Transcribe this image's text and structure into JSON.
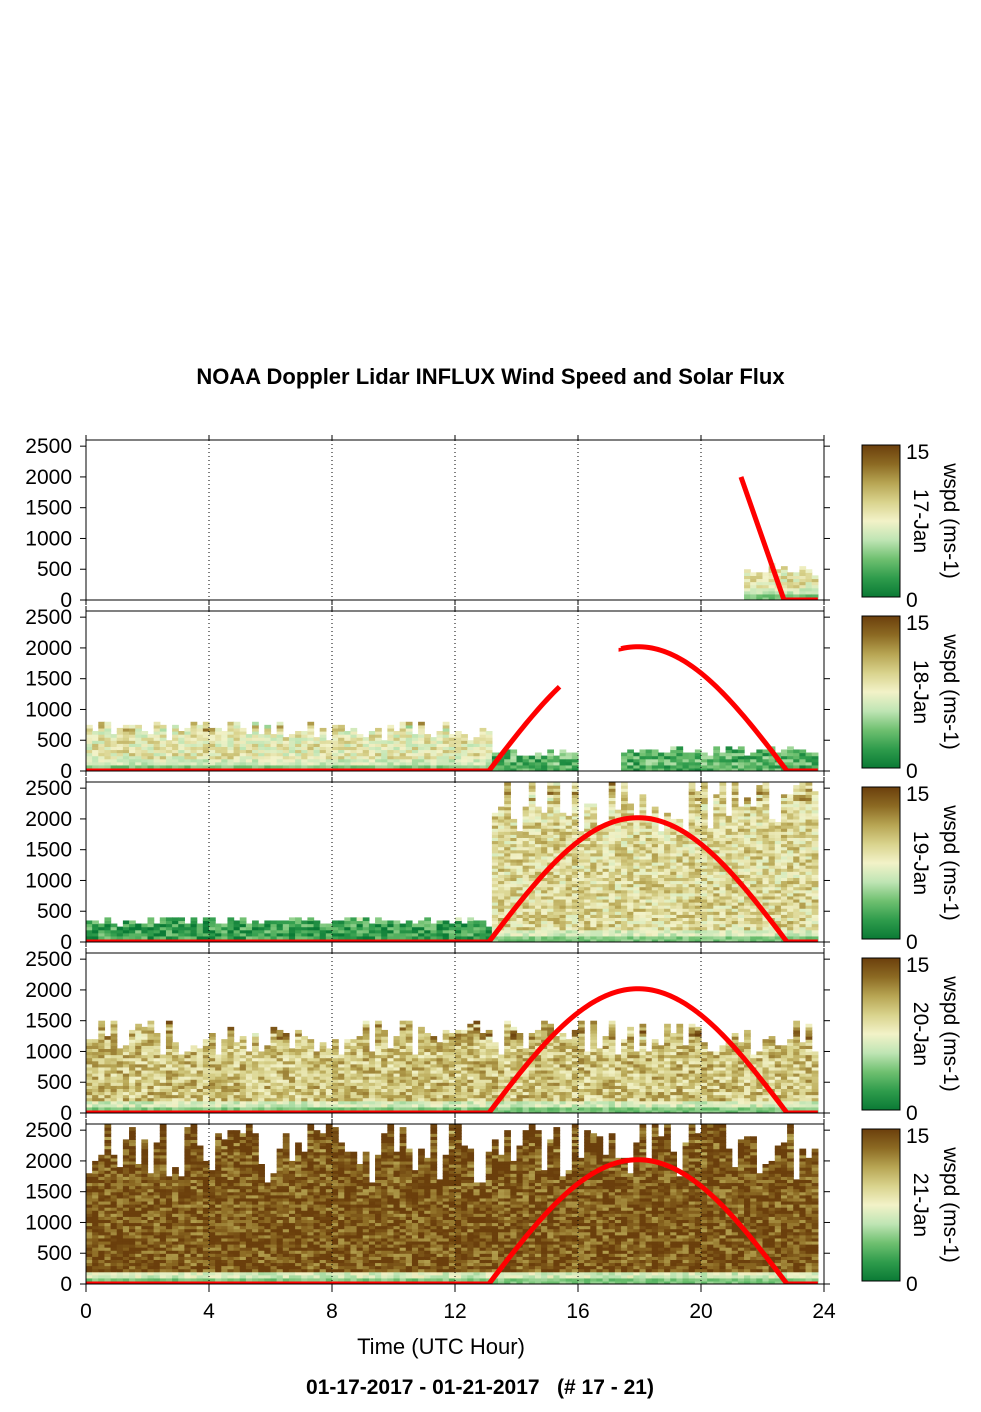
{
  "title": "NOAA Doppler Lidar INFLUX Wind Speed and Solar Flux",
  "footer": "01-17-2017 - 01-21-2017   (# 17 - 21)",
  "colors": {
    "solar_line": "#ff0000",
    "colormap": [
      "#0a7a35",
      "#2f9c4c",
      "#6fc070",
      "#bfe5b4",
      "#f2f2c8",
      "#d9d38d",
      "#b7a553",
      "#8c6a23",
      "#6b3f0c"
    ]
  },
  "chart_data": {
    "type": "heatmap",
    "xlabel": "Time (UTC Hour)",
    "xlim": [
      0,
      24
    ],
    "x_ticks": [
      "0",
      "4",
      "8",
      "12",
      "16",
      "20",
      "24"
    ],
    "ylim": [
      0,
      2600
    ],
    "y_ticks": [
      "0",
      "500",
      "1000",
      "1500",
      "2000",
      "2500"
    ],
    "colorbar": {
      "label": "wspd (ms-1)",
      "min": "0",
      "max": "15"
    },
    "grid": "dotted vertical at x ticks",
    "panels": [
      {
        "date_label": "17-Jan",
        "coverage": [
          {
            "x_start": 21.4,
            "x_end": 23.8,
            "y_max": 500,
            "dominant_wspd": 8
          }
        ],
        "solar_curve": [
          [
            21.3,
            2000
          ],
          [
            22.7,
            0
          ],
          [
            23.8,
            0
          ]
        ]
      },
      {
        "date_label": "18-Jan",
        "coverage": [
          {
            "x_start": 0.0,
            "x_end": 13.2,
            "y_max": 700,
            "dominant_wspd": 8
          },
          {
            "x_start": 13.2,
            "x_end": 16.0,
            "y_max": 300,
            "dominant_wspd": 3
          },
          {
            "x_start": 17.4,
            "x_end": 23.8,
            "y_max": 350,
            "dominant_wspd": 3
          }
        ],
        "solar_curve": [
          [
            0,
            0
          ],
          [
            13.1,
            0
          ],
          [
            15.4,
            1400
          ],
          [
            17.4,
            2000
          ],
          [
            18.0,
            2020
          ],
          [
            22.8,
            0
          ],
          [
            23.8,
            0
          ]
        ]
      },
      {
        "date_label": "19-Jan",
        "coverage": [
          {
            "x_start": 0.0,
            "x_end": 13.2,
            "y_max": 350,
            "dominant_wspd": 2
          },
          {
            "x_start": 13.2,
            "x_end": 23.8,
            "y_max": 2500,
            "dominant_wspd": 9
          }
        ],
        "solar_curve": [
          [
            0,
            0
          ],
          [
            13.1,
            0
          ],
          [
            18.0,
            2020
          ],
          [
            22.8,
            0
          ],
          [
            23.8,
            0
          ]
        ]
      },
      {
        "date_label": "20-Jan",
        "coverage": [
          {
            "x_start": 0.0,
            "x_end": 23.8,
            "y_max": 1300,
            "dominant_wspd": 10
          }
        ],
        "solar_curve": [
          [
            0,
            0
          ],
          [
            13.1,
            0
          ],
          [
            18.0,
            2020
          ],
          [
            22.8,
            0
          ],
          [
            23.8,
            0
          ]
        ]
      },
      {
        "date_label": "21-Jan",
        "coverage": [
          {
            "x_start": 0.0,
            "x_end": 23.8,
            "y_max": 2300,
            "dominant_wspd": 14
          }
        ],
        "solar_curve": [
          [
            0,
            0
          ],
          [
            13.1,
            0
          ],
          [
            18.0,
            2020
          ],
          [
            22.8,
            0
          ],
          [
            23.8,
            0
          ]
        ]
      }
    ]
  }
}
